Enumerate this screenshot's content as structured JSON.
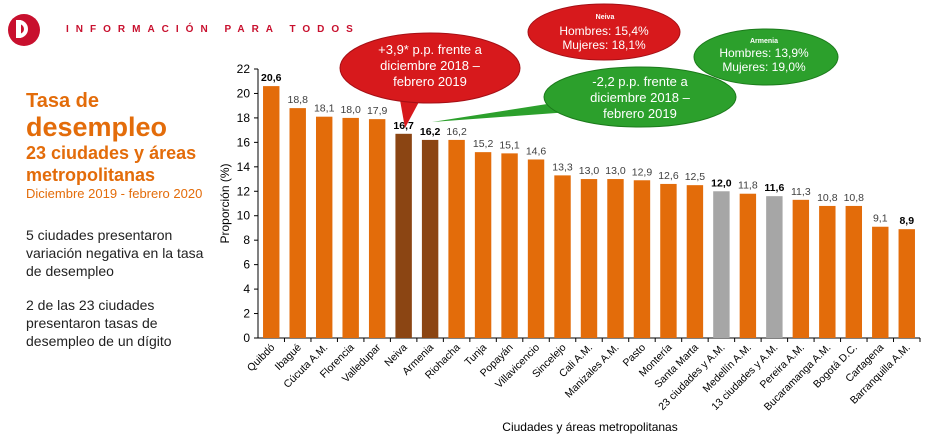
{
  "header": {
    "brand": "INFORMACIÓN PARA TODOS"
  },
  "title": {
    "line1": "Tasa de",
    "line2": "desempleo",
    "line3": "23 ciudades y áreas metropolitanas",
    "period": "Diciembre 2019 - febrero 2020"
  },
  "notes": {
    "note1": "5 ciudades presentaron variación negativa en la tasa de desempleo",
    "note2": "2 de las 23 ciudades presentaron tasas de desempleo de un dígito"
  },
  "callouts": {
    "neiva_title": "Neiva",
    "neiva_men": "Hombres: 15,4%",
    "neiva_women": "Mujeres: 18,1%",
    "neiva_change": "+3,9* p.p. frente a diciembre 2018 – febrero 2019",
    "armenia_title": "Armenia",
    "armenia_men": "Hombres: 13,9%",
    "armenia_women": "Mujeres: 19,0%",
    "armenia_change": "-2,2 p.p. frente a diciembre 2018 – febrero 2019"
  },
  "colors": {
    "orange": "#e36c0a",
    "brown": "#8b4513",
    "gray": "#a6a6a6",
    "red": "#d7191c",
    "green": "#2ca02c"
  },
  "chart_data": {
    "type": "bar",
    "title": "",
    "xlabel": "Ciudades y áreas metropolitanas",
    "ylabel": "Proporción (%)",
    "ylim": [
      0,
      22
    ],
    "yticks": [
      0,
      2,
      4,
      6,
      8,
      10,
      12,
      14,
      16,
      18,
      20,
      22
    ],
    "categories": [
      "Quibdó",
      "Ibagué",
      "Cúcuta A.M.",
      "Florencia",
      "Valledupar",
      "Neiva",
      "Armenia",
      "Riohacha",
      "Tunja",
      "Popayán",
      "Villavicencio",
      "Sincelejo",
      "Cali A.M.",
      "Manizales A.M.",
      "Pasto",
      "Montería",
      "Santa Marta",
      "23 ciudades y A.M.",
      "Medellín A.M.",
      "13 ciudades y A.M.",
      "Pereira A.M.",
      "Bucaramanga A.M.",
      "Bogotá D.C.",
      "Cartagena",
      "Barranquilla A.M."
    ],
    "values": [
      20.6,
      18.8,
      18.1,
      18.0,
      17.9,
      16.7,
      16.2,
      16.2,
      15.2,
      15.1,
      14.6,
      13.3,
      13.0,
      13.0,
      12.9,
      12.6,
      12.5,
      12.0,
      11.8,
      11.6,
      11.3,
      10.8,
      10.8,
      9.1,
      8.9
    ],
    "value_labels": [
      "20,6",
      "18,8",
      "18,1",
      "18,0",
      "17,9",
      "16,7",
      "16,2",
      "16,2",
      "15,2",
      "15,1",
      "14,6",
      "13,3",
      "13,0",
      "13,0",
      "12,9",
      "12,6",
      "12,5",
      "12,0",
      "11,8",
      "11,6",
      "11,3",
      "10,8",
      "10,8",
      "9,1",
      "8,9"
    ],
    "bar_colors": [
      "#e36c0a",
      "#e36c0a",
      "#e36c0a",
      "#e36c0a",
      "#e36c0a",
      "#8b4513",
      "#8b4513",
      "#e36c0a",
      "#e36c0a",
      "#e36c0a",
      "#e36c0a",
      "#e36c0a",
      "#e36c0a",
      "#e36c0a",
      "#e36c0a",
      "#e36c0a",
      "#e36c0a",
      "#a6a6a6",
      "#e36c0a",
      "#a6a6a6",
      "#e36c0a",
      "#e36c0a",
      "#e36c0a",
      "#e36c0a",
      "#e36c0a"
    ],
    "bold_labels": [
      true,
      false,
      false,
      false,
      false,
      true,
      true,
      false,
      false,
      false,
      false,
      false,
      false,
      false,
      false,
      false,
      false,
      true,
      false,
      true,
      false,
      false,
      false,
      false,
      true
    ],
    "grid": false,
    "legend": "none"
  }
}
